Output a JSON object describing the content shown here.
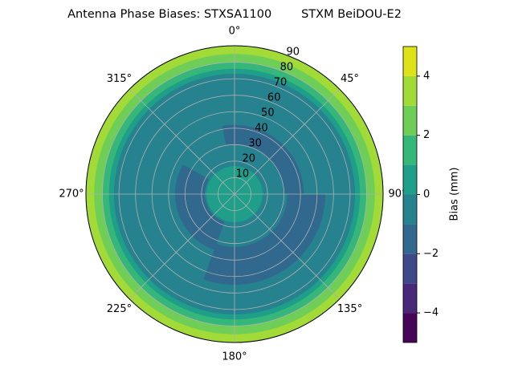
{
  "chart_data": {
    "type": "polar-contour",
    "title": "Antenna Phase Biases: STXSA1100        STXM BeiDOU-E2",
    "rlim": [
      0,
      90
    ],
    "rticks": [
      10,
      20,
      30,
      40,
      50,
      60,
      70,
      80,
      90
    ],
    "thetaticks": [
      {
        "value": 0,
        "label": "0°"
      },
      {
        "value": 45,
        "label": "45°"
      },
      {
        "value": 90,
        "label": "90°"
      },
      {
        "value": 135,
        "label": "135°"
      },
      {
        "value": 180,
        "label": "180°"
      },
      {
        "value": 225,
        "label": "225°"
      },
      {
        "value": 270,
        "label": "270°"
      },
      {
        "value": 315,
        "label": "315°"
      }
    ],
    "grid": true,
    "colorbar": {
      "label": "Bias (mm)",
      "levels": [
        -5,
        -4,
        -3,
        -2,
        -1,
        0,
        1,
        2,
        3,
        4,
        5
      ],
      "colors": [
        "#450559",
        "#482878",
        "#3e4989",
        "#31688e",
        "#26828e",
        "#1f9e89",
        "#35b779",
        "#6ece58",
        "#a2da37",
        "#dde318"
      ],
      "ticks": [
        {
          "value": -4,
          "label": "−4"
        },
        {
          "value": -2,
          "label": "−2"
        },
        0,
        2,
        4
      ]
    },
    "regions": [
      {
        "level": 3,
        "r_in": 0,
        "r_out": 90,
        "from": 0,
        "to": 360
      },
      {
        "level": 2,
        "r_in": 0,
        "r_out": 85,
        "from": 0,
        "to": 360
      },
      {
        "level": 1,
        "r_in": 0,
        "r_out": 80,
        "from": 0,
        "to": 360
      },
      {
        "level": 0,
        "r_in": 0,
        "r_out": 76,
        "from": 0,
        "to": 360
      },
      {
        "level": -1,
        "r_in": 0,
        "r_out": 73,
        "from": 0,
        "to": 360
      },
      {
        "level": -2,
        "r_in": 30,
        "r_out": 42,
        "from": -10,
        "to": 90
      },
      {
        "level": -2,
        "r_in": 32,
        "r_out": 55,
        "from": 90,
        "to": 200
      },
      {
        "level": -2,
        "r_in": 18,
        "r_out": 36,
        "from": 200,
        "to": 300
      },
      {
        "level": 0,
        "r_in": 0,
        "r_out": 17,
        "from": 0,
        "to": 360
      }
    ]
  }
}
